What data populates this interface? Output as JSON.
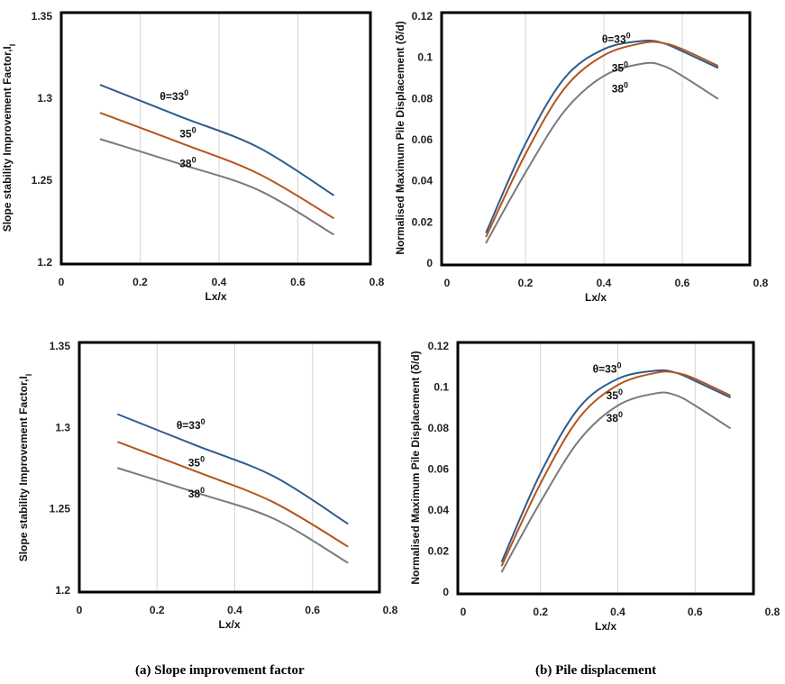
{
  "captions": {
    "a": "(a) Slope improvement factor",
    "b": "(b) Pile displacement"
  },
  "colors": {
    "theta33": "#2f5b8c",
    "theta35": "#b5541c",
    "theta38": "#7a7a7a",
    "grid": "#d4d4d4",
    "frame": "#000000"
  },
  "chart_data": [
    {
      "id": "top-left",
      "type": "line",
      "xlabel": "Lx/x",
      "ylabel": "Slope stability Improvement Factor,I",
      "ylabel_sub": "l",
      "xlim": [
        0,
        0.8
      ],
      "ylim": [
        1.2,
        1.35
      ],
      "xticks": [
        0,
        0.2,
        0.4,
        0.6,
        0.8
      ],
      "xtick_labels": [
        "0",
        "0.2",
        "0.4",
        "0.6",
        "0.8"
      ],
      "yticks": [
        1.2,
        1.25,
        1.3,
        1.35
      ],
      "ytick_labels": [
        "1.2",
        "1.25",
        "1.3",
        "1.35"
      ],
      "grid": "vertical",
      "series": [
        {
          "name": "θ=33",
          "color_key": "theta33",
          "x": [
            0.1,
            0.3,
            0.5,
            0.69
          ],
          "y": [
            1.308,
            1.289,
            1.27,
            1.241
          ]
        },
        {
          "name": "35",
          "color_key": "theta35",
          "x": [
            0.1,
            0.3,
            0.5,
            0.69
          ],
          "y": [
            1.291,
            1.273,
            1.254,
            1.227
          ]
        },
        {
          "name": "38",
          "color_key": "theta38",
          "x": [
            0.1,
            0.3,
            0.5,
            0.69
          ],
          "y": [
            1.275,
            1.26,
            1.244,
            1.217
          ]
        }
      ],
      "annotations": [
        {
          "text": "θ=33",
          "sup": "0",
          "x": 0.25,
          "y": 1.299
        },
        {
          "text": "35",
          "sup": "0",
          "x": 0.3,
          "y": 1.276
        },
        {
          "text": "38",
          "sup": "0",
          "x": 0.3,
          "y": 1.258
        }
      ]
    },
    {
      "id": "top-right",
      "type": "line",
      "xlabel": "Lx/x",
      "ylabel": "Normalised Maximum Pile Displacement (δ/d)",
      "xlim": [
        0,
        0.8
      ],
      "ylim": [
        0,
        0.12
      ],
      "xticks": [
        0,
        0.2,
        0.4,
        0.6,
        0.8
      ],
      "xtick_labels": [
        "0",
        "0.2",
        "0.4",
        "0.6",
        "0.8"
      ],
      "yticks": [
        0,
        0.02,
        0.04,
        0.06,
        0.08,
        0.1,
        0.12
      ],
      "ytick_labels": [
        "0",
        "0.02",
        "0.04",
        "0.06",
        "0.08",
        "0.1",
        "0.12"
      ],
      "grid": "vertical",
      "series": [
        {
          "name": "θ=33",
          "color_key": "theta33",
          "x": [
            0.1,
            0.2,
            0.3,
            0.4,
            0.5,
            0.55,
            0.6,
            0.69
          ],
          "y": [
            0.015,
            0.058,
            0.09,
            0.104,
            0.108,
            0.107,
            0.103,
            0.095
          ]
        },
        {
          "name": "35",
          "color_key": "theta35",
          "x": [
            0.1,
            0.2,
            0.3,
            0.4,
            0.5,
            0.55,
            0.6,
            0.69
          ],
          "y": [
            0.013,
            0.053,
            0.085,
            0.101,
            0.107,
            0.107,
            0.104,
            0.096
          ]
        },
        {
          "name": "38",
          "color_key": "theta38",
          "x": [
            0.1,
            0.2,
            0.3,
            0.4,
            0.5,
            0.55,
            0.6,
            0.69
          ],
          "y": [
            0.01,
            0.044,
            0.074,
            0.091,
            0.097,
            0.096,
            0.091,
            0.08
          ]
        }
      ],
      "annotations": [
        {
          "text": "θ=33",
          "sup": "0",
          "x": 0.395,
          "y": 0.107
        },
        {
          "text": "35",
          "sup": "0",
          "x": 0.42,
          "y": 0.093
        },
        {
          "text": "38",
          "sup": "0",
          "x": 0.42,
          "y": 0.083
        }
      ]
    },
    {
      "id": "bottom-left",
      "type": "line",
      "xlabel": "Lx/x",
      "ylabel": "Slope stability Improvement Factor,I",
      "ylabel_sub": "l",
      "xlim": [
        0,
        0.8
      ],
      "ylim": [
        1.2,
        1.35
      ],
      "xticks": [
        0,
        0.2,
        0.4,
        0.6,
        0.8
      ],
      "xtick_labels": [
        "0",
        "0.2",
        "0.4",
        "0.6",
        "0.8"
      ],
      "yticks": [
        1.2,
        1.25,
        1.3,
        1.35
      ],
      "ytick_labels": [
        "1.2",
        "1.25",
        "1.3",
        "1.35"
      ],
      "grid": "vertical",
      "series": [
        {
          "name": "θ=33",
          "color_key": "theta33",
          "x": [
            0.1,
            0.3,
            0.5,
            0.69
          ],
          "y": [
            1.308,
            1.289,
            1.27,
            1.241
          ]
        },
        {
          "name": "35",
          "color_key": "theta35",
          "x": [
            0.1,
            0.3,
            0.5,
            0.69
          ],
          "y": [
            1.291,
            1.273,
            1.254,
            1.227
          ]
        },
        {
          "name": "38",
          "color_key": "theta38",
          "x": [
            0.1,
            0.3,
            0.5,
            0.69
          ],
          "y": [
            1.275,
            1.26,
            1.244,
            1.217
          ]
        }
      ],
      "annotations": [
        {
          "text": "θ=33",
          "sup": "0",
          "x": 0.25,
          "y": 1.299
        },
        {
          "text": "35",
          "sup": "0",
          "x": 0.28,
          "y": 1.276
        },
        {
          "text": "38",
          "sup": "0",
          "x": 0.28,
          "y": 1.257
        }
      ]
    },
    {
      "id": "bottom-right",
      "type": "line",
      "xlabel": "Lx/x",
      "ylabel": "Normalised Maximum Pile Displacement (δ/d)",
      "xlim": [
        0,
        0.8
      ],
      "ylim": [
        0,
        0.12
      ],
      "xticks": [
        0,
        0.2,
        0.4,
        0.6,
        0.8
      ],
      "xtick_labels": [
        "0",
        "0.2",
        "0.4",
        "0.6",
        "0.8"
      ],
      "yticks": [
        0,
        0.02,
        0.04,
        0.06,
        0.08,
        0.1,
        0.12
      ],
      "ytick_labels": [
        "0",
        "0.02",
        "0.04",
        "0.06",
        "0.08",
        "0.1",
        "0.12"
      ],
      "grid": "vertical",
      "series": [
        {
          "name": "θ=33",
          "color_key": "theta33",
          "x": [
            0.1,
            0.2,
            0.3,
            0.4,
            0.5,
            0.55,
            0.6,
            0.69
          ],
          "y": [
            0.015,
            0.058,
            0.09,
            0.104,
            0.108,
            0.107,
            0.103,
            0.095
          ]
        },
        {
          "name": "35",
          "color_key": "theta35",
          "x": [
            0.1,
            0.2,
            0.3,
            0.4,
            0.5,
            0.55,
            0.6,
            0.69
          ],
          "y": [
            0.013,
            0.053,
            0.085,
            0.101,
            0.107,
            0.107,
            0.104,
            0.096
          ]
        },
        {
          "name": "38",
          "color_key": "theta38",
          "x": [
            0.1,
            0.2,
            0.3,
            0.4,
            0.5,
            0.55,
            0.6,
            0.69
          ],
          "y": [
            0.01,
            0.044,
            0.074,
            0.091,
            0.097,
            0.096,
            0.091,
            0.08
          ]
        }
      ],
      "annotations": [
        {
          "text": "θ=33",
          "sup": "0",
          "x": 0.335,
          "y": 0.107
        },
        {
          "text": "35",
          "sup": "0",
          "x": 0.37,
          "y": 0.094
        },
        {
          "text": "38",
          "sup": "0",
          "x": 0.37,
          "y": 0.083
        }
      ]
    }
  ]
}
